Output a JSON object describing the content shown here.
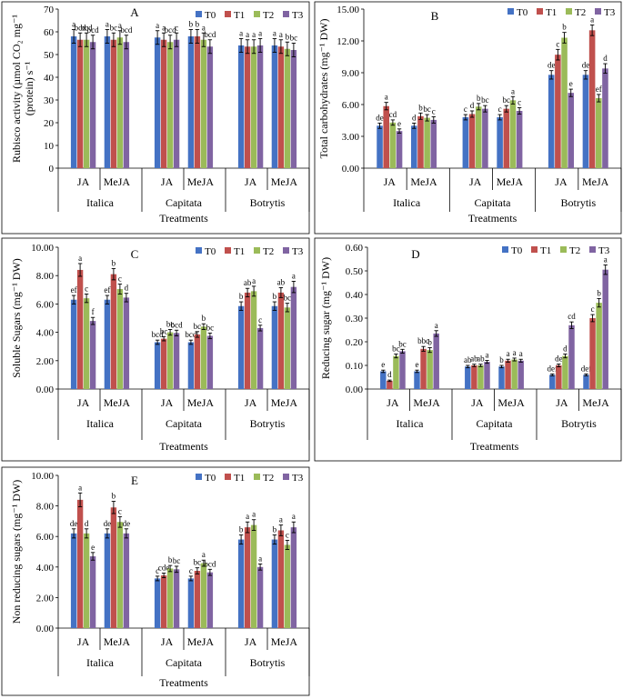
{
  "legend": [
    "T0",
    "T1",
    "T2",
    "T3"
  ],
  "colors": [
    "#4472C4",
    "#C0504D",
    "#9BBB59",
    "#8064A2"
  ],
  "chart_data": [
    {
      "type": "bar",
      "id": "A",
      "panel_label": "A",
      "ylabel_lines": [
        "Rubisco activity (µmol CO",
        "2",
        " mg",
        "-1",
        "(protein) s",
        "-1",
        ""
      ],
      "ylabel_top": "Rubisco activity (µmol CO₂ mg⁻¹",
      "ylabel_bottom": "(protein) s⁻¹",
      "xlabel": "Treatments",
      "ylim": [
        0,
        70
      ],
      "yticks": [
        "0",
        "10",
        "20",
        "30",
        "40",
        "50",
        "60",
        "70"
      ],
      "hormones": [
        "JA",
        "MeJA"
      ],
      "varieties": [
        "Italica",
        "Capitata",
        "Botrytis"
      ],
      "values": [
        [
          58.0,
          56.5,
          56.5,
          55.5
        ],
        [
          58.0,
          56.5,
          57.5,
          55.5
        ],
        [
          57.5,
          56.5,
          55.5,
          56.5
        ],
        [
          58.0,
          58.0,
          56.5,
          53.5
        ],
        [
          54.0,
          53.5,
          53.5,
          54.0
        ],
        [
          54.0,
          53.5,
          52.5,
          52.0
        ]
      ],
      "errors": [
        [
          3,
          3,
          3,
          3
        ],
        [
          3,
          3,
          3,
          3
        ],
        [
          3,
          3,
          3,
          3
        ],
        [
          3,
          3,
          3,
          3
        ],
        [
          3,
          3,
          3,
          3
        ],
        [
          3,
          3,
          3,
          3
        ]
      ],
      "letters": [
        [
          "a",
          "bcd",
          "bcd",
          "bcd"
        ],
        [
          "a",
          "bc",
          "a",
          "bcd"
        ],
        [
          "a",
          "a",
          "bcd",
          "c"
        ],
        [
          "b",
          "b",
          "a",
          "bcd"
        ],
        [
          "a",
          "a",
          "a",
          "a"
        ],
        [
          "a",
          "a",
          "b",
          "bc"
        ]
      ]
    },
    {
      "type": "bar",
      "id": "B",
      "panel_label": "B",
      "ylabel_top": "Total carbohydrates (mg⁻¹ DW)",
      "xlabel": "Treatments",
      "ylim": [
        0,
        15
      ],
      "yticks": [
        "0.00",
        "3.00",
        "6.00",
        "9.00",
        "12.00",
        "15.00"
      ],
      "hormones": [
        "JA",
        "MeJA"
      ],
      "varieties": [
        "Italica",
        "Capitata",
        "Botrytis"
      ],
      "values": [
        [
          4.0,
          5.85,
          4.3,
          3.5
        ],
        [
          4.0,
          4.9,
          4.75,
          4.55
        ],
        [
          4.8,
          5.1,
          5.8,
          5.6
        ],
        [
          4.8,
          5.6,
          6.4,
          5.4
        ],
        [
          8.8,
          10.7,
          12.3,
          7.1
        ],
        [
          8.8,
          13.0,
          6.6,
          9.4
        ]
      ],
      "errors": [
        [
          0.25,
          0.35,
          0.25,
          0.2
        ],
        [
          0.25,
          0.3,
          0.3,
          0.3
        ],
        [
          0.25,
          0.3,
          0.3,
          0.3
        ],
        [
          0.25,
          0.3,
          0.35,
          0.3
        ],
        [
          0.4,
          0.5,
          0.5,
          0.35
        ],
        [
          0.4,
          0.5,
          0.35,
          0.45
        ]
      ],
      "letters": [
        [
          "de",
          "a",
          "cd",
          "e"
        ],
        [
          "d",
          "b",
          "bc",
          "c"
        ],
        [
          "c",
          "d",
          "b",
          "bc"
        ],
        [
          "c",
          "bc",
          "a",
          "c"
        ],
        [
          "de",
          "c",
          "b",
          "e"
        ],
        [
          "de",
          "a",
          "ef",
          "d"
        ]
      ]
    },
    {
      "type": "bar",
      "id": "C",
      "panel_label": "C",
      "ylabel_top": "Soluble Sugars (mg⁻¹ DW)",
      "xlabel": "Treatments",
      "ylim": [
        0,
        10
      ],
      "yticks": [
        "0.00",
        "2.00",
        "4.00",
        "6.00",
        "8.00",
        "10.00"
      ],
      "hormones": [
        "JA",
        "MeJA"
      ],
      "varieties": [
        "Italica",
        "Capitata",
        "Botrytis"
      ],
      "values": [
        [
          6.3,
          8.4,
          6.4,
          4.8
        ],
        [
          6.3,
          8.1,
          7.05,
          6.45
        ],
        [
          3.3,
          3.55,
          4.0,
          3.95
        ],
        [
          3.3,
          3.85,
          4.4,
          3.75
        ],
        [
          5.85,
          6.8,
          6.9,
          4.3
        ],
        [
          5.85,
          6.8,
          5.75,
          7.2
        ]
      ],
      "errors": [
        [
          0.3,
          0.45,
          0.3,
          0.25
        ],
        [
          0.3,
          0.4,
          0.35,
          0.3
        ],
        [
          0.15,
          0.15,
          0.2,
          0.2
        ],
        [
          0.15,
          0.2,
          0.2,
          0.2
        ],
        [
          0.3,
          0.3,
          0.35,
          0.2
        ],
        [
          0.3,
          0.35,
          0.3,
          0.4
        ]
      ],
      "letters": [
        [
          "ef",
          "a",
          "c",
          "f"
        ],
        [
          "ef",
          "b",
          "c",
          "d"
        ],
        [
          "bcd",
          "bc",
          "bc",
          "bcd"
        ],
        [
          "bcd",
          "bc",
          "b",
          "bc"
        ],
        [
          "b",
          "ab",
          "a",
          "c"
        ],
        [
          "b",
          "ab",
          "bc",
          "a"
        ]
      ]
    },
    {
      "type": "bar",
      "id": "D",
      "panel_label": "D",
      "ylabel_top": "Reducing sugar (mg⁻¹ DW)",
      "xlabel": "Treatments",
      "ylim": [
        0,
        0.6
      ],
      "yticks": [
        "0.00",
        "0.10",
        "0.20",
        "0.30",
        "0.40",
        "0.50",
        "0.60"
      ],
      "hormones": [
        "JA",
        "MeJA"
      ],
      "varieties": [
        "Italica",
        "Capitata",
        "Botrytis"
      ],
      "values": [
        [
          0.075,
          0.035,
          0.14,
          0.16
        ],
        [
          0.075,
          0.17,
          0.165,
          0.235
        ],
        [
          0.095,
          0.1,
          0.1,
          0.115
        ],
        [
          0.095,
          0.12,
          0.125,
          0.12
        ],
        [
          0.06,
          0.1,
          0.14,
          0.27
        ],
        [
          0.06,
          0.3,
          0.365,
          0.505
        ]
      ],
      "errors": [
        [
          0.005,
          0.003,
          0.008,
          0.008
        ],
        [
          0.005,
          0.01,
          0.01,
          0.012
        ],
        [
          0.005,
          0.005,
          0.005,
          0.006
        ],
        [
          0.005,
          0.006,
          0.006,
          0.006
        ],
        [
          0.004,
          0.006,
          0.008,
          0.014
        ],
        [
          0.004,
          0.015,
          0.018,
          0.02
        ]
      ],
      "letters": [
        [
          "e",
          "d",
          "bc",
          "bc"
        ],
        [
          "e",
          "bbc",
          "b",
          "a"
        ],
        [
          "ab",
          "ab",
          "ab",
          "a"
        ],
        [
          "b",
          "a",
          "a",
          "a"
        ],
        [
          "def",
          "de",
          "d",
          "cd"
        ],
        [
          "def",
          "c",
          "b",
          "a"
        ]
      ]
    },
    {
      "type": "bar",
      "id": "E",
      "panel_label": "E",
      "ylabel_top": "Non reducing sugars (mg⁻¹ DW)",
      "xlabel": "Treatments",
      "ylim": [
        0,
        10
      ],
      "yticks": [
        "0.00",
        "2.00",
        "4.00",
        "6.00",
        "8.00",
        "10.00"
      ],
      "hormones": [
        "JA",
        "MeJA"
      ],
      "varieties": [
        "Italica",
        "Capitata",
        "Botrytis"
      ],
      "values": [
        [
          6.2,
          8.4,
          6.2,
          4.7
        ],
        [
          6.2,
          7.9,
          6.95,
          6.2
        ],
        [
          3.25,
          3.45,
          3.9,
          3.85
        ],
        [
          3.25,
          3.75,
          4.25,
          3.65
        ],
        [
          5.8,
          6.6,
          6.75,
          4.0
        ],
        [
          5.8,
          6.4,
          5.45,
          6.6
        ]
      ],
      "errors": [
        [
          0.3,
          0.45,
          0.3,
          0.25
        ],
        [
          0.3,
          0.4,
          0.35,
          0.3
        ],
        [
          0.15,
          0.15,
          0.2,
          0.2
        ],
        [
          0.15,
          0.2,
          0.2,
          0.2
        ],
        [
          0.3,
          0.35,
          0.35,
          0.2
        ],
        [
          0.3,
          0.35,
          0.3,
          0.35
        ]
      ],
      "letters": [
        [
          "de",
          "a",
          "d",
          "e"
        ],
        [
          "de",
          "b",
          "c",
          "de"
        ],
        [
          "c",
          "cde",
          "b",
          "bc"
        ],
        [
          "c",
          "bc",
          "a",
          "bcd"
        ],
        [
          "b",
          "a",
          "a",
          "a"
        ],
        [
          "b",
          "a",
          "c",
          "a"
        ]
      ]
    }
  ]
}
